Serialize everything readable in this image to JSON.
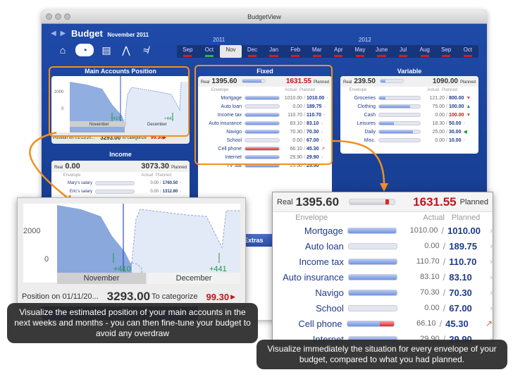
{
  "window": {
    "title": "BudgetView"
  },
  "header": {
    "title": "Budget",
    "month": "November 2011",
    "year_left": "2011",
    "year_right": "2012",
    "timeline": [
      {
        "label": "Sep",
        "status": "red"
      },
      {
        "label": "Oct",
        "status": "ok"
      },
      {
        "label": "Nov",
        "status": "current"
      },
      {
        "label": "Dec",
        "status": "red"
      },
      {
        "label": "Jan",
        "status": "red"
      },
      {
        "label": "Feb",
        "status": "red"
      },
      {
        "label": "Mar",
        "status": "red"
      },
      {
        "label": "Apr",
        "status": "red"
      },
      {
        "label": "May",
        "status": "red"
      },
      {
        "label": "June",
        "status": "red"
      },
      {
        "label": "Jul",
        "status": "red"
      },
      {
        "label": "Aug",
        "status": "red"
      },
      {
        "label": "Sep",
        "status": "red"
      },
      {
        "label": "Oct",
        "status": "red"
      }
    ]
  },
  "main_accounts": {
    "title": "Main Accounts Position",
    "y_tick_top": "2000",
    "y_tick_bottom": "0",
    "month_left": "November",
    "month_right": "December",
    "marker_left": "+410",
    "marker_right": "+441",
    "position_label": "Position on 01/11/20...",
    "position_value": "3293.00",
    "categorize_label": "To categorize",
    "categorize_value": "99.30"
  },
  "income": {
    "title": "Income",
    "real_label": "Real",
    "real_value": "0.00",
    "planned_value": "3073.30",
    "planned_label": "Planned",
    "col_envelope": "Envelope",
    "col_actual": "Actual",
    "col_planned": "Planned",
    "rows": [
      {
        "name": "Mary's salary",
        "actual": "0.00",
        "planned": "1760.50",
        "fill": 0
      },
      {
        "name": "Eric's salary",
        "actual": "0.00",
        "planned": "1312.80",
        "fill": 0
      }
    ]
  },
  "fixed": {
    "title": "Fixed",
    "real_label": "Real",
    "real_value": "1395.60",
    "planned_value": "1631.55",
    "planned_label": "Planned",
    "col_envelope": "Envelope",
    "col_actual": "Actual",
    "col_planned": "Planned",
    "rows": [
      {
        "name": "Mortgage",
        "actual": "1010.00",
        "planned": "1010.00",
        "fill": 1.0,
        "warn": false
      },
      {
        "name": "Auto loan",
        "actual": "0.00",
        "planned": "189.75",
        "fill": 0,
        "warn": false
      },
      {
        "name": "Income tax",
        "actual": "110.70",
        "planned": "110.70",
        "fill": 1.0,
        "warn": false
      },
      {
        "name": "Auto insurance",
        "actual": "83.10",
        "planned": "83.10",
        "fill": 1.0,
        "warn": false
      },
      {
        "name": "Navigo",
        "actual": "70.30",
        "planned": "70.30",
        "fill": 1.0,
        "warn": false
      },
      {
        "name": "School",
        "actual": "0.00",
        "planned": "67.00",
        "fill": 0,
        "warn": false
      },
      {
        "name": "Cell phone",
        "actual": "66.10",
        "planned": "45.30",
        "fill": 1.0,
        "warn": true
      },
      {
        "name": "Internet",
        "actual": "29.90",
        "planned": "29.90",
        "fill": 1.0,
        "warn": false
      },
      {
        "name": "TV Sat",
        "actual": "25.50",
        "planned": "25.50",
        "fill": 1.0,
        "warn": false
      }
    ]
  },
  "variable": {
    "title": "Variable",
    "real_label": "Real",
    "real_value": "239.50",
    "planned_value": "1090.00",
    "planned_label": "Planned",
    "col_envelope": "Envelope",
    "col_actual": "Actual",
    "col_planned": "Planned",
    "rows": [
      {
        "name": "Groceries",
        "actual": "121.20",
        "planned": "800.00",
        "fill": 0.15,
        "trend": "down-red"
      },
      {
        "name": "Clothing",
        "actual": "75.00",
        "planned": "100.00",
        "fill": 0.75,
        "trend": "up-green"
      },
      {
        "name": "Cash",
        "actual": "0.00",
        "planned": "100.00",
        "fill": 0,
        "trend": "down-red",
        "planned_red": true
      },
      {
        "name": "Leisures",
        "actual": "18.30",
        "planned": "50.00",
        "fill": 0.37,
        "trend": "right"
      },
      {
        "name": "Daily",
        "actual": "25.00",
        "planned": "30.00",
        "fill": 0.83,
        "trend": "left-green"
      },
      {
        "name": "Misc.",
        "actual": "0.00",
        "planned": "10.00",
        "fill": 0,
        "trend": "right"
      }
    ]
  },
  "extras": {
    "title": "Extras"
  },
  "callouts": {
    "left": "Visualize the estimated position of your main accounts in the next weeks and months - you can then fine-tune your budget to avoid any overdraw",
    "right": "Visualize immediately the situation for every envelope of your budget, compared to what you had planned."
  },
  "colors": {
    "accent": "#1f4aa8",
    "highlight": "#f09020",
    "over": "#c0151b",
    "ok": "#1a9a3a"
  }
}
